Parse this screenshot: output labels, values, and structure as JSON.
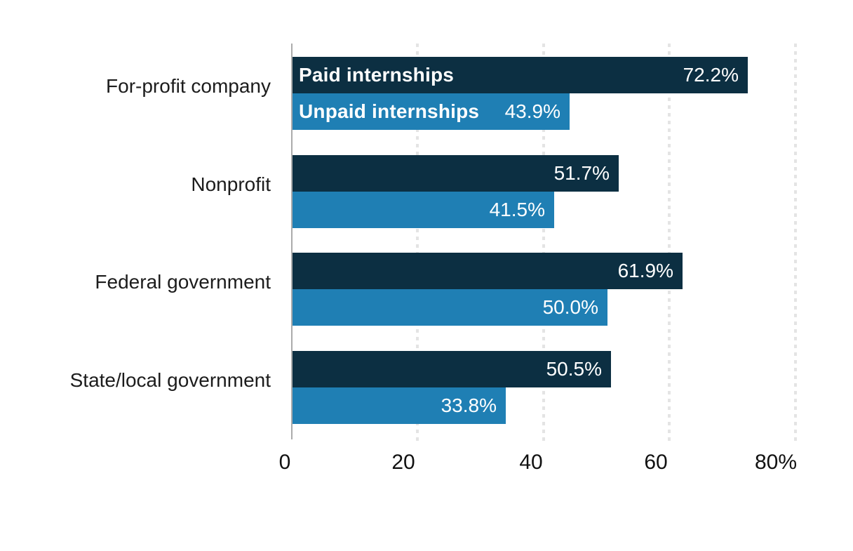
{
  "chart_data": {
    "type": "bar",
    "orientation": "horizontal",
    "title": "",
    "xlabel": "",
    "ylabel": "",
    "xlim": [
      0,
      80
    ],
    "grid": "dotted-vertical-gridlines",
    "legend_position": "inside-first-group-bars",
    "categories": [
      "For-profit company",
      "Nonprofit",
      "Federal government",
      "State/local government"
    ],
    "series": [
      {
        "name": "Paid internships",
        "color": "#0c2f42",
        "values": [
          72.2,
          51.7,
          61.9,
          50.5
        ],
        "value_labels": [
          "72.2%",
          "51.7%",
          "61.9%",
          "50.5%"
        ]
      },
      {
        "name": "Unpaid internships",
        "color": "#1f7fb4",
        "values": [
          43.9,
          41.5,
          50.0,
          33.8
        ],
        "value_labels": [
          "43.9%",
          "41.5%",
          "50.0%",
          "33.8%"
        ]
      }
    ],
    "x_ticks": [
      {
        "value": 0,
        "label": "0"
      },
      {
        "value": 20,
        "label": "20"
      },
      {
        "value": 40,
        "label": "40"
      },
      {
        "value": 60,
        "label": "60"
      },
      {
        "value": 80,
        "label": "80%"
      }
    ]
  },
  "colors": {
    "background": "#ffffff",
    "paid_bar": "#0c2f42",
    "unpaid_bar": "#1f7fb4",
    "gridline": "#e4e4e4",
    "axis_line": "#ababab",
    "category_text": "#1c1c1c",
    "tick_text": "#111111",
    "bar_text": "#ffffff"
  }
}
